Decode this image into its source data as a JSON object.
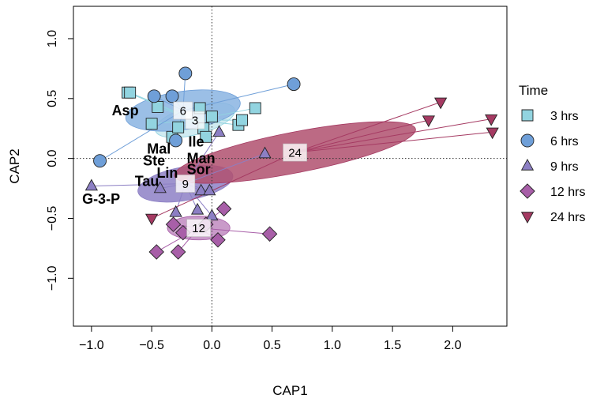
{
  "chart_data": {
    "type": "scatter",
    "xlabel": "CAP1",
    "ylabel": "CAP2",
    "xlim": [
      -1.15,
      2.45
    ],
    "ylim": [
      -1.4,
      1.27
    ],
    "xticks": [
      -1.0,
      -0.5,
      0.0,
      0.5,
      1.0,
      1.5,
      2.0
    ],
    "xtick_labels": [
      "−1.0",
      "−0.5",
      "0.0",
      "0.5",
      "1.0",
      "1.5",
      "2.0"
    ],
    "yticks": [
      -1.0,
      -0.5,
      0.0,
      0.5,
      1.0
    ],
    "ytick_labels": [
      "−1.0",
      "−0.5",
      "0.0",
      "0.5",
      "1.0"
    ],
    "legend": {
      "title": "Time",
      "position": "right",
      "entries": [
        "3 hrs",
        "6 hrs",
        "9 hrs",
        "12 hrs",
        "24 hrs"
      ]
    },
    "series": [
      {
        "name": "3 hrs",
        "label": "3",
        "shape": "square",
        "fill": "#92d4e0",
        "ellipse_fill": "#c8e8ef",
        "centroid": [
          -0.14,
          0.32
        ],
        "ellipse": {
          "rx": 0.34,
          "ry": 0.12,
          "angle": 15
        },
        "points": [
          [
            -0.7,
            0.55
          ],
          [
            -0.68,
            0.55
          ],
          [
            -0.5,
            0.29
          ],
          [
            -0.45,
            0.43
          ],
          [
            -0.33,
            0.18
          ],
          [
            -0.28,
            0.26
          ],
          [
            -0.1,
            0.42
          ],
          [
            -0.07,
            0.25
          ],
          [
            0.0,
            0.35
          ],
          [
            0.22,
            0.28
          ],
          [
            0.25,
            0.32
          ],
          [
            0.36,
            0.42
          ],
          [
            -0.05,
            0.18
          ]
        ]
      },
      {
        "name": "6 hrs",
        "label": "6",
        "shape": "circle",
        "fill": "#6f9fd8",
        "ellipse_fill": "#8ab4e2",
        "centroid": [
          -0.24,
          0.4
        ],
        "ellipse": {
          "rx": 0.48,
          "ry": 0.16,
          "angle": 8
        },
        "points": [
          [
            -0.93,
            -0.02
          ],
          [
            -0.48,
            0.52
          ],
          [
            -0.33,
            0.52
          ],
          [
            -0.22,
            0.71
          ],
          [
            -0.3,
            0.15
          ],
          [
            0.68,
            0.62
          ]
        ]
      },
      {
        "name": "9 hrs",
        "label": "9",
        "shape": "triangle",
        "fill": "#8c7fc4",
        "ellipse_fill": "#8d80c6",
        "centroid": [
          -0.22,
          -0.21
        ],
        "ellipse": {
          "rx": 0.4,
          "ry": 0.14,
          "angle": 10
        },
        "points": [
          [
            -1.0,
            -0.23
          ],
          [
            -0.43,
            -0.25
          ],
          [
            -0.3,
            -0.45
          ],
          [
            -0.12,
            -0.43
          ],
          [
            -0.09,
            -0.27
          ],
          [
            -0.02,
            -0.27
          ],
          [
            0.06,
            0.22
          ],
          [
            0.44,
            0.04
          ],
          [
            0.0,
            -0.48
          ]
        ]
      },
      {
        "name": "12 hrs",
        "label": "12",
        "shape": "diamond",
        "fill": "#a85fa8",
        "ellipse_fill": "#c08ac0",
        "centroid": [
          -0.11,
          -0.58
        ],
        "ellipse": {
          "rx": 0.26,
          "ry": 0.1,
          "angle": 0
        },
        "points": [
          [
            -0.46,
            -0.78
          ],
          [
            -0.28,
            -0.78
          ],
          [
            -0.32,
            -0.55
          ],
          [
            -0.24,
            -0.62
          ],
          [
            0.05,
            -0.68
          ],
          [
            0.1,
            -0.42
          ],
          [
            0.48,
            -0.63
          ],
          [
            -0.05,
            -0.55
          ]
        ]
      },
      {
        "name": "24 hrs",
        "label": "24",
        "shape": "triangle-down",
        "fill": "#a53a62",
        "ellipse_fill": "#b0506f",
        "centroid": [
          0.69,
          0.05
        ],
        "ellipse": {
          "rx": 1.02,
          "ry": 0.17,
          "angle": 11
        },
        "points": [
          [
            -0.5,
            -0.5
          ],
          [
            1.8,
            0.32
          ],
          [
            1.9,
            0.47
          ],
          [
            2.32,
            0.33
          ],
          [
            2.33,
            0.22
          ]
        ]
      }
    ],
    "variable_labels": [
      {
        "text": "Asp",
        "x": -0.72,
        "y": 0.4
      },
      {
        "text": "Ile",
        "x": -0.13,
        "y": 0.14
      },
      {
        "text": "Mal",
        "x": -0.44,
        "y": 0.08
      },
      {
        "text": "Man",
        "x": -0.09,
        "y": 0.0
      },
      {
        "text": "Ste",
        "x": -0.48,
        "y": -0.02
      },
      {
        "text": "Sor",
        "x": -0.11,
        "y": -0.09
      },
      {
        "text": "Lin",
        "x": -0.37,
        "y": -0.12
      },
      {
        "text": "Tau",
        "x": -0.54,
        "y": -0.19
      },
      {
        "text": "G-3-P",
        "x": -0.92,
        "y": -0.34
      }
    ]
  }
}
